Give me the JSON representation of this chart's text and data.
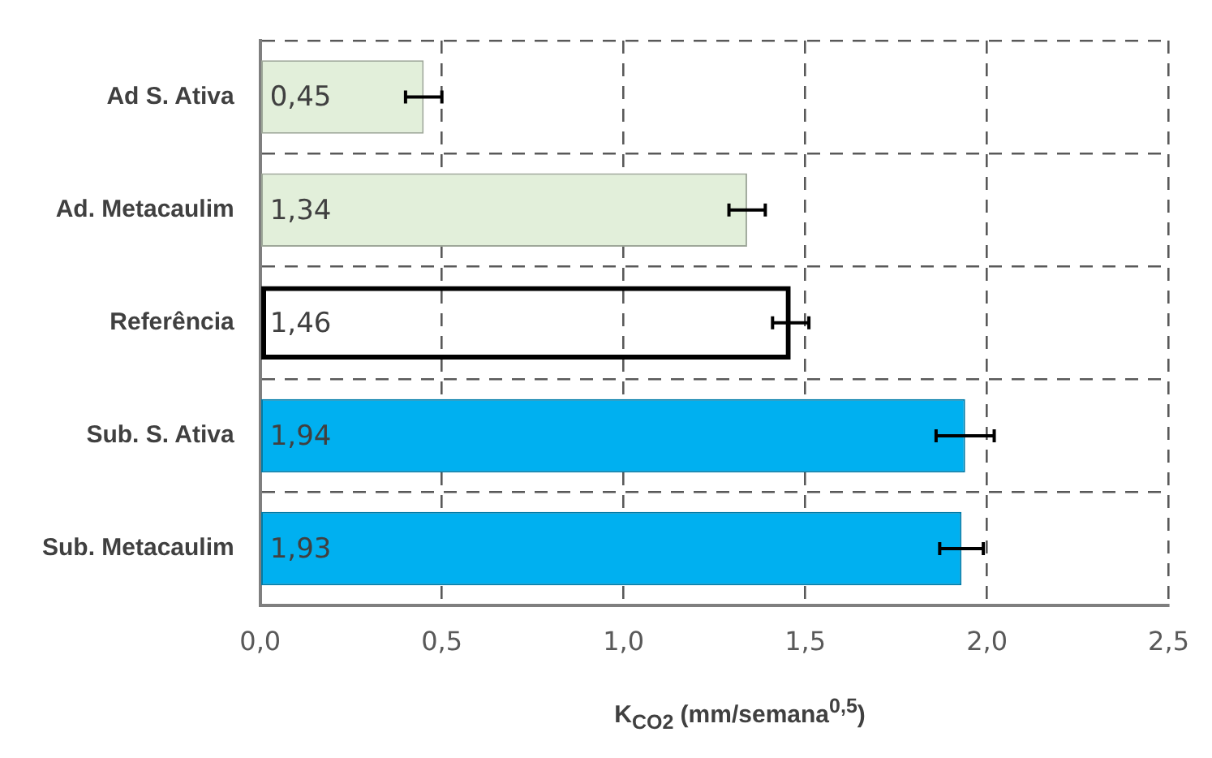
{
  "chart_data": {
    "type": "bar",
    "orientation": "horizontal",
    "categories": [
      "Ad S. Ativa",
      "Ad. Metacaulim",
      "Referência",
      "Sub. S. Ativa",
      "Sub. Metacaulim"
    ],
    "values": [
      0.45,
      1.34,
      1.46,
      1.94,
      1.93
    ],
    "errors": [
      0.05,
      0.05,
      0.05,
      0.08,
      0.06
    ],
    "value_labels": [
      "0,45",
      "1,34",
      "1,46",
      "1,94",
      "1,93"
    ],
    "colors": [
      "#e2efda",
      "#e2efda",
      "#000000",
      "#00b0f0",
      "#00b0f0"
    ],
    "xlabel": "K$_{CO2}$ (mm/semana$^{0,5}$)",
    "xlim": [
      0,
      2.5
    ],
    "xticks": [
      {
        "value": 0,
        "label": "0,0"
      },
      {
        "value": 0.5,
        "label": "0,5"
      },
      {
        "value": 1,
        "label": "1,0"
      },
      {
        "value": 1.5,
        "label": "1,5"
      },
      {
        "value": 2,
        "label": "2,0"
      },
      {
        "value": 2.5,
        "label": "2,5"
      }
    ],
    "grid": true,
    "legend": false
  }
}
